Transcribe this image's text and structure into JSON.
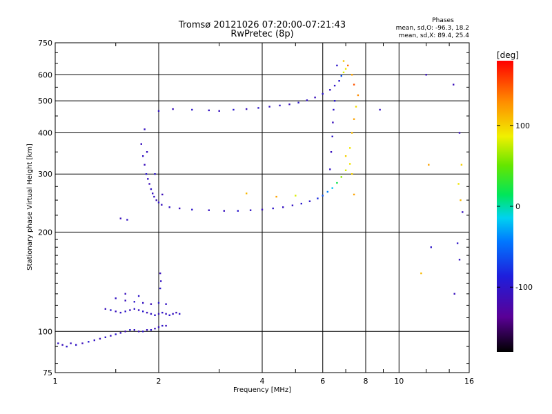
{
  "title_line1": "Tromsø 20121026 07:20:00-07:21:43",
  "title_line2": "RwPretec (8p)",
  "stats": {
    "heading": "Phases",
    "line_o": "mean, sd,O: -96.3, 18.2",
    "line_x": "mean, sd,X:  89.4, 25.4"
  },
  "colorbar": {
    "label": "[deg]",
    "range": [
      -180,
      180
    ],
    "ticks": [
      {
        "value": 100,
        "label": "100"
      },
      {
        "value": 0,
        "label": "0"
      },
      {
        "value": -100,
        "label": "-100"
      }
    ]
  },
  "chart_data": {
    "type": "scatter",
    "xlabel": "Frequency [MHz]",
    "ylabel": "Stationary phase Virtual Height [km]",
    "x_scale": "log",
    "y_scale": "log",
    "xlim": [
      1,
      16
    ],
    "ylim": [
      75,
      750
    ],
    "grid": true,
    "xticks": [
      {
        "value": 1,
        "label": "1"
      },
      {
        "value": 2,
        "label": "2"
      },
      {
        "value": 4,
        "label": "4"
      },
      {
        "value": 6,
        "label": "6"
      },
      {
        "value": 8,
        "label": "8"
      },
      {
        "value": 10,
        "label": "10"
      },
      {
        "value": 16,
        "label": "16"
      }
    ],
    "yticks": [
      {
        "value": 75,
        "label": "75"
      },
      {
        "value": 100,
        "label": "100"
      },
      {
        "value": 200,
        "label": "200"
      },
      {
        "value": 300,
        "label": "300"
      },
      {
        "value": 400,
        "label": "400"
      },
      {
        "value": 500,
        "label": "500"
      },
      {
        "value": 600,
        "label": "600"
      },
      {
        "value": 750,
        "label": "750"
      }
    ],
    "points": [
      [
        1.02,
        92,
        -105
      ],
      [
        1.05,
        91,
        -110
      ],
      [
        1.08,
        90,
        -100
      ],
      [
        1.11,
        92,
        -108
      ],
      [
        1.15,
        91,
        -102
      ],
      [
        1.2,
        92,
        -112
      ],
      [
        1.25,
        93,
        -95
      ],
      [
        1.3,
        94,
        -104
      ],
      [
        1.35,
        95,
        -110
      ],
      [
        1.4,
        96,
        -100
      ],
      [
        1.45,
        97,
        -106
      ],
      [
        1.5,
        98,
        -98
      ],
      [
        1.55,
        99,
        -108
      ],
      [
        1.6,
        100,
        -115
      ],
      [
        1.65,
        101,
        -96
      ],
      [
        1.7,
        101,
        -104
      ],
      [
        1.75,
        100,
        -110
      ],
      [
        1.8,
        100,
        -102
      ],
      [
        1.85,
        101,
        -108
      ],
      [
        1.9,
        101,
        -99
      ],
      [
        1.95,
        102,
        -112
      ],
      [
        2.0,
        103,
        -106
      ],
      [
        2.05,
        104,
        -100
      ],
      [
        2.1,
        104,
        -110
      ],
      [
        1.4,
        117,
        -108
      ],
      [
        1.45,
        116,
        -96
      ],
      [
        1.5,
        115,
        -110
      ],
      [
        1.55,
        114,
        -104
      ],
      [
        1.6,
        115,
        -100
      ],
      [
        1.65,
        116,
        -112
      ],
      [
        1.7,
        117,
        -102
      ],
      [
        1.75,
        116,
        -108
      ],
      [
        1.8,
        115,
        -96
      ],
      [
        1.85,
        114,
        -110
      ],
      [
        1.9,
        113,
        -104
      ],
      [
        1.95,
        112,
        -100
      ],
      [
        2.0,
        113,
        -110
      ],
      [
        2.05,
        114,
        -102
      ],
      [
        2.1,
        113,
        -108
      ],
      [
        2.15,
        112,
        -98
      ],
      [
        2.2,
        113,
        -106
      ],
      [
        2.25,
        114,
        -110
      ],
      [
        2.3,
        113,
        -100
      ],
      [
        1.5,
        126,
        -104
      ],
      [
        1.6,
        124,
        -110
      ],
      [
        1.7,
        123,
        -100
      ],
      [
        1.8,
        122,
        -106
      ],
      [
        1.9,
        121,
        -112
      ],
      [
        2.0,
        122,
        -98
      ],
      [
        2.1,
        121,
        -104
      ],
      [
        1.6,
        130,
        -108
      ],
      [
        1.75,
        128,
        -100
      ],
      [
        2.02,
        150,
        -110
      ],
      [
        2.03,
        142,
        -104
      ],
      [
        2.02,
        135,
        -98
      ],
      [
        1.78,
        370,
        -108
      ],
      [
        1.8,
        340,
        -104
      ],
      [
        1.82,
        320,
        -110
      ],
      [
        1.84,
        300,
        -98
      ],
      [
        1.86,
        290,
        -106
      ],
      [
        1.88,
        280,
        -112
      ],
      [
        1.9,
        270,
        -100
      ],
      [
        1.92,
        262,
        -108
      ],
      [
        1.94,
        256,
        -104
      ],
      [
        1.97,
        250,
        -110
      ],
      [
        2.0,
        246,
        -102
      ],
      [
        2.04,
        242,
        -108
      ],
      [
        1.82,
        410,
        -106
      ],
      [
        1.95,
        300,
        -100
      ],
      [
        2.05,
        260,
        -112
      ],
      [
        1.55,
        220,
        -110
      ],
      [
        1.62,
        218,
        -104
      ],
      [
        1.85,
        350,
        -108
      ],
      [
        2.0,
        466,
        -104
      ],
      [
        2.2,
        472,
        -110
      ],
      [
        2.5,
        470,
        -100
      ],
      [
        2.8,
        468,
        -106
      ],
      [
        3.0,
        466,
        -108
      ],
      [
        3.3,
        470,
        -96
      ],
      [
        3.6,
        472,
        -110
      ],
      [
        3.9,
        476,
        -100
      ],
      [
        4.2,
        480,
        -106
      ],
      [
        4.5,
        484,
        -102
      ],
      [
        4.8,
        488,
        -108
      ],
      [
        5.1,
        494,
        -98
      ],
      [
        5.4,
        502,
        -104
      ],
      [
        5.7,
        512,
        -110
      ],
      [
        6.0,
        525,
        -100
      ],
      [
        6.3,
        540,
        -106
      ],
      [
        6.5,
        556,
        -102
      ],
      [
        6.7,
        575,
        -96
      ],
      [
        6.8,
        595,
        -60
      ],
      [
        6.9,
        610,
        80
      ],
      [
        7.0,
        625,
        90
      ],
      [
        6.6,
        640,
        -100
      ],
      [
        2.15,
        238,
        -104
      ],
      [
        2.3,
        236,
        -110
      ],
      [
        2.5,
        234,
        -100
      ],
      [
        2.8,
        233,
        -106
      ],
      [
        3.1,
        232,
        -108
      ],
      [
        3.4,
        232,
        -98
      ],
      [
        3.7,
        233,
        -104
      ],
      [
        4.0,
        234,
        -110
      ],
      [
        4.3,
        236,
        -100
      ],
      [
        4.6,
        238,
        -106
      ],
      [
        4.9,
        241,
        -104
      ],
      [
        5.2,
        244,
        -96
      ],
      [
        5.5,
        248,
        -100
      ],
      [
        5.8,
        253,
        -80
      ],
      [
        6.0,
        258,
        -60
      ],
      [
        6.2,
        265,
        -40
      ],
      [
        6.4,
        272,
        -20
      ],
      [
        6.6,
        282,
        20
      ],
      [
        6.8,
        294,
        60
      ],
      [
        7.0,
        308,
        80
      ],
      [
        7.2,
        322,
        90
      ],
      [
        7.3,
        300,
        100
      ],
      [
        7.4,
        260,
        120
      ],
      [
        3.6,
        262,
        110
      ],
      [
        4.4,
        256,
        120
      ],
      [
        5.0,
        258,
        80
      ],
      [
        6.3,
        310,
        -104
      ],
      [
        6.35,
        350,
        -108
      ],
      [
        6.4,
        390,
        -100
      ],
      [
        6.42,
        430,
        -110
      ],
      [
        6.45,
        470,
        -102
      ],
      [
        6.5,
        500,
        -96
      ],
      [
        7.0,
        340,
        100
      ],
      [
        7.2,
        360,
        90
      ],
      [
        7.3,
        400,
        110
      ],
      [
        7.4,
        440,
        120
      ],
      [
        7.5,
        480,
        95
      ],
      [
        7.6,
        520,
        130
      ],
      [
        7.4,
        560,
        150
      ],
      [
        7.3,
        600,
        120
      ],
      [
        7.1,
        640,
        140
      ],
      [
        6.9,
        660,
        105
      ],
      [
        15.0,
        400,
        -110
      ],
      [
        15.2,
        320,
        100
      ],
      [
        14.9,
        280,
        90
      ],
      [
        15.1,
        250,
        110
      ],
      [
        15.3,
        230,
        -108
      ],
      [
        14.8,
        185,
        -100
      ],
      [
        12.0,
        600,
        -110
      ],
      [
        12.2,
        320,
        120
      ],
      [
        12.4,
        180,
        -100
      ],
      [
        11.6,
        150,
        110
      ],
      [
        8.8,
        470,
        -106
      ],
      [
        14.4,
        560,
        -110
      ],
      [
        15.0,
        165,
        -104
      ],
      [
        14.5,
        130,
        -108
      ]
    ]
  }
}
